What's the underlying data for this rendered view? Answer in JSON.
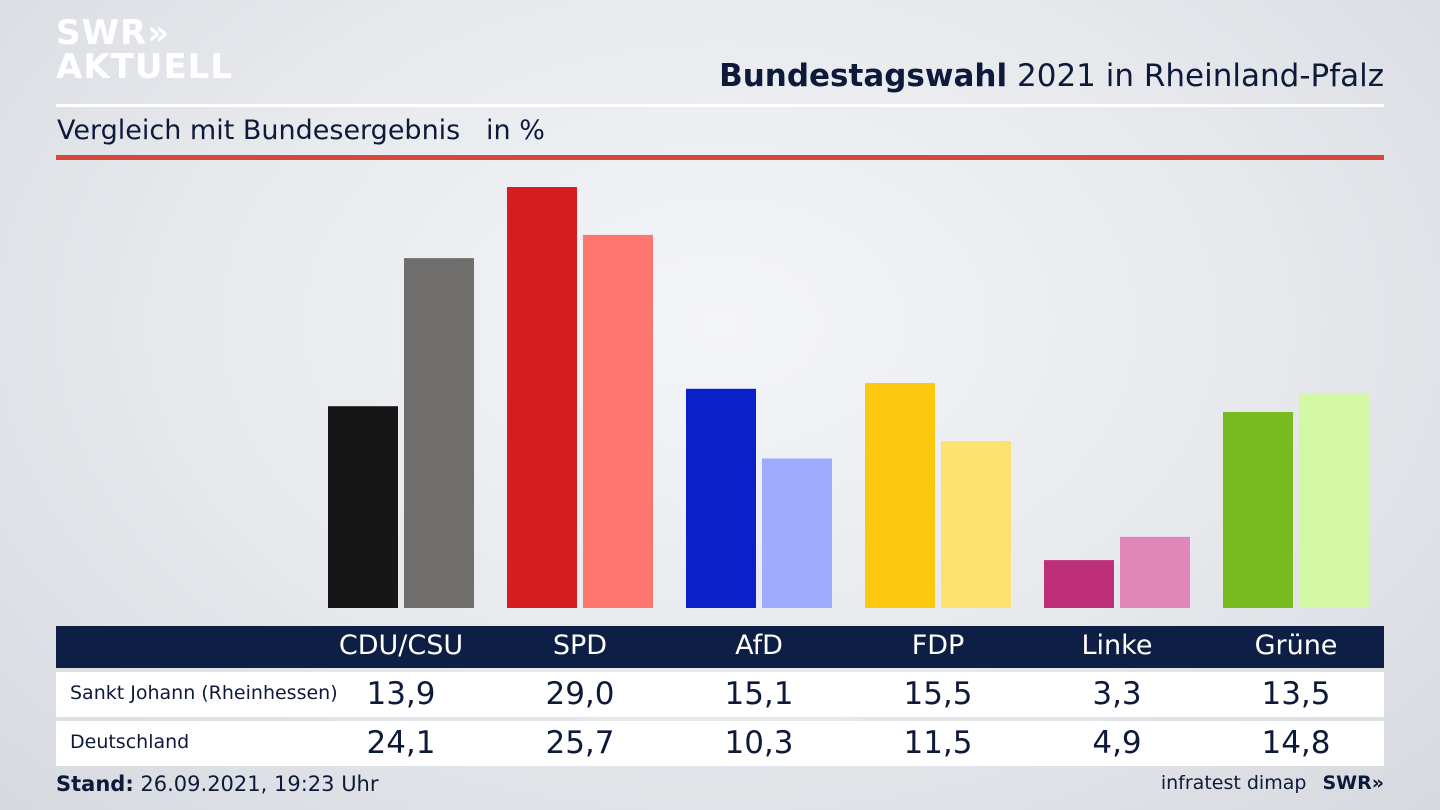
{
  "brand": {
    "logo_line1": "SWR»",
    "logo_line2": "AKTUELL"
  },
  "header": {
    "title_bold": "Bundestagswahl",
    "title_rest": "2021 in Rheinland-Pfalz",
    "subtitle": "Vergleich mit Bundesergebnis   in %"
  },
  "chart_data": {
    "type": "bar",
    "title": "Bundestagswahl 2021 in Rheinland-Pfalz",
    "subtitle": "Vergleich mit Bundesergebnis",
    "unit": "in %",
    "categories": [
      "CDU/CSU",
      "SPD",
      "AfD",
      "FDP",
      "Linke",
      "Grüne"
    ],
    "series": [
      {
        "name": "Sankt Johann (Rheinhessen)",
        "values": [
          13.9,
          29.0,
          15.1,
          15.5,
          3.3,
          13.5
        ],
        "value_labels": [
          "13,9",
          "29,0",
          "15,1",
          "15,5",
          "3,3",
          "13,5"
        ],
        "colors": [
          "#161616",
          "#d61e21",
          "#0a20c8",
          "#fdc90f",
          "#be2f7a",
          "#78bb20"
        ]
      },
      {
        "name": "Deutschland",
        "values": [
          24.1,
          25.7,
          10.3,
          11.5,
          4.9,
          14.8
        ],
        "value_labels": [
          "24,1",
          "25,7",
          "10,3",
          "11,5",
          "4,9",
          "14,8"
        ],
        "colors": [
          "#6f6e6d",
          "#ff7570",
          "#9eabff",
          "#fee271",
          "#e086b9",
          "#d3f7a5"
        ]
      }
    ]
  },
  "footer": {
    "stand_label": "Stand:",
    "stand_value": "26.09.2021, 19:23 Uhr",
    "source": "infratest dimap",
    "swr": "SWR»"
  }
}
